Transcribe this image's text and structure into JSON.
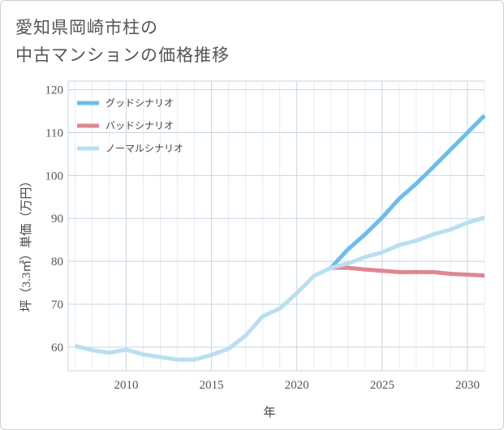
{
  "title_line1": "愛知県岡崎市柱の",
  "title_line2": "中古マンションの価格推移",
  "chart_data": {
    "type": "line",
    "xlabel": "年",
    "ylabel": "坪（3.3㎡）単価（万円）",
    "xlim": [
      2006.6,
      2031
    ],
    "ylim": [
      54.5,
      122
    ],
    "x_ticks": [
      2010,
      2015,
      2020,
      2025,
      2030
    ],
    "y_ticks": [
      60,
      70,
      80,
      90,
      100,
      110,
      120
    ],
    "grid": true,
    "legend_position": "top-left",
    "series": [
      {
        "name": "グッドシナリオ",
        "color": "#6cbde9",
        "x": [
          2022,
          2023,
          2024,
          2025,
          2026,
          2027,
          2028,
          2029,
          2030,
          2031
        ],
        "y": [
          78.5,
          82.8,
          86.3,
          90.2,
          94.6,
          98.1,
          102.0,
          106.0,
          110.0,
          114.0
        ]
      },
      {
        "name": "バッドシナリオ",
        "color": "#de8791",
        "x": [
          2022,
          2023,
          2024,
          2025,
          2026,
          2027,
          2028,
          2029,
          2030,
          2031
        ],
        "y": [
          78.5,
          78.5,
          78.1,
          77.8,
          77.5,
          77.5,
          77.5,
          77.1,
          76.9,
          76.7
        ]
      },
      {
        "name": "ノーマルシナリオ",
        "color": "#b9dff0",
        "x": [
          2007,
          2008,
          2009,
          2010,
          2011,
          2012,
          2013,
          2014,
          2015,
          2016,
          2017,
          2018,
          2019,
          2020,
          2021,
          2022,
          2023,
          2024,
          2025,
          2026,
          2027,
          2028,
          2029,
          2030,
          2031
        ],
        "y": [
          60.3,
          59.3,
          58.7,
          59.4,
          58.3,
          57.7,
          57.1,
          57.1,
          58.2,
          59.6,
          62.7,
          67.2,
          69.0,
          72.6,
          76.6,
          78.5,
          79.5,
          81.0,
          82.1,
          83.8,
          84.8,
          86.3,
          87.4,
          89.0,
          90.2
        ]
      }
    ]
  }
}
